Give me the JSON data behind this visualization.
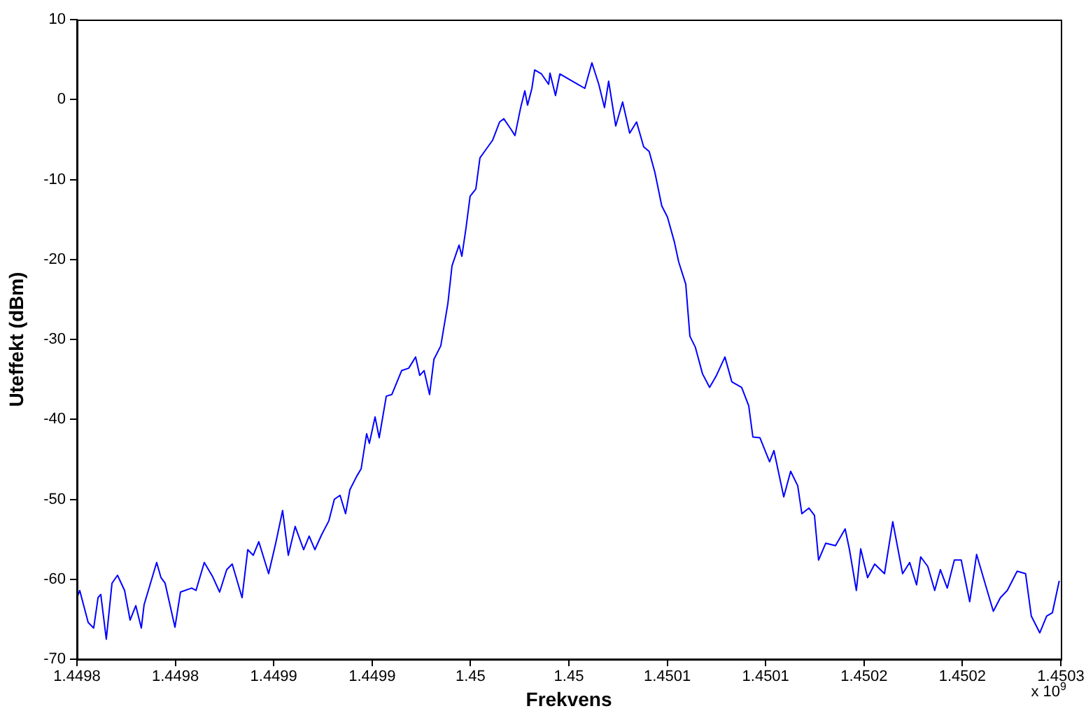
{
  "chart_data": {
    "type": "line",
    "xlabel": "Frekvens",
    "ylabel": "Uteffekt (dBm)",
    "annotations": [
      "x 10$^{9}$"
    ],
    "xlim": [
      1.4498,
      1.4503
    ],
    "xticks": [
      {
        "value": 1.4498,
        "label": "1.4498"
      },
      {
        "value": 1.44985,
        "label": "1.4498"
      },
      {
        "value": 1.4499,
        "label": "1.4499"
      },
      {
        "value": 1.44995,
        "label": "1.4499"
      },
      {
        "value": 1.45,
        "label": "1.45"
      },
      {
        "value": 1.45005,
        "label": "1.45"
      },
      {
        "value": 1.4501,
        "label": "1.4501"
      },
      {
        "value": 1.45015,
        "label": "1.4501"
      },
      {
        "value": 1.4502,
        "label": "1.4502"
      },
      {
        "value": 1.45025,
        "label": "1.4502"
      },
      {
        "value": 1.4503,
        "label": "1.4503"
      }
    ],
    "ylim": [
      -70,
      10
    ],
    "yticks": [
      -70,
      -60,
      -50,
      -40,
      -30,
      -20,
      -10,
      0,
      10
    ],
    "grid": false,
    "legend": false,
    "marker": "none",
    "line_style": "solid",
    "series": [
      {
        "color": "#0000ff",
        "x": [
          1.4498,
          1.4498014,
          1.4498057,
          1.4498085,
          1.4498107,
          1.4498121,
          1.4498149,
          1.4498178,
          1.4498206,
          1.4498242,
          1.449827,
          1.4498299,
          1.4498327,
          1.4498341,
          1.4498405,
          1.4498427,
          1.4498448,
          1.4498498,
          1.4498526,
          1.4498583,
          1.4498605,
          1.4498647,
          1.449869,
          1.4498725,
          1.4498761,
          1.4498789,
          1.4498839,
          1.4498868,
          1.4498896,
          1.4498924,
          1.4498974,
          1.449901,
          1.4499045,
          1.4499074,
          1.4499109,
          1.4499152,
          1.449918,
          1.4499209,
          1.4499244,
          1.449928,
          1.4499308,
          1.4499337,
          1.4499365,
          1.4499387,
          1.4499422,
          1.4499444,
          1.4499472,
          1.4499486,
          1.4499515,
          1.4499536,
          1.4499572,
          1.44996,
          1.449965,
          1.4499686,
          1.4499721,
          1.4499742,
          1.4499764,
          1.4499792,
          1.4499814,
          1.4499849,
          1.4499885,
          1.4499906,
          1.4499942,
          1.4499956,
          1.4499977,
          1.4499998,
          1.4500027,
          1.4500048,
          1.4500077,
          1.4500112,
          1.4500148,
          1.4500169,
          1.4500205,
          1.4500226,
          1.4500255,
          1.4500276,
          1.450029,
          1.4500312,
          1.4500326,
          1.4500361,
          1.4500397,
          1.4500404,
          1.4500432,
          1.4500454,
          1.4500503,
          1.4500546,
          1.4500581,
          1.4500617,
          1.4500652,
          1.4500681,
          1.4500702,
          1.4500738,
          1.4500773,
          1.4500809,
          1.4500844,
          1.450088,
          1.4500908,
          1.4500937,
          1.4500972,
          1.4501001,
          1.4501036,
          1.4501058,
          1.4501094,
          1.4501115,
          1.4501143,
          1.4501179,
          1.4501215,
          1.450125,
          1.4501293,
          1.4501328,
          1.4501378,
          1.4501414,
          1.4501435,
          1.4501471,
          1.450152,
          1.4501542,
          1.4501592,
          1.4501627,
          1.4501663,
          1.4501684,
          1.450172,
          1.4501748,
          1.4501769,
          1.4501805,
          1.4501855,
          1.4501904,
          1.4501926,
          1.4501961,
          1.4501983,
          1.4502018,
          1.4502054,
          1.4502104,
          1.4502146,
          1.4502196,
          1.4502232,
          1.4502267,
          1.4502288,
          1.4502324,
          1.4502359,
          1.4502388,
          1.4502423,
          1.4502459,
          1.4502494,
          1.4502537,
          1.4502572,
          1.4502622,
          1.4502657,
          1.4502693,
          1.4502728,
          1.4502778,
          1.4502821,
          1.450285,
          1.4502893,
          1.4502928,
          1.4502957,
          1.4502992
        ],
        "values": [
          -62.3,
          -61.4,
          -65.4,
          -66.1,
          -62.3,
          -61.9,
          -67.5,
          -60.5,
          -59.5,
          -61.4,
          -65.1,
          -63.3,
          -66.1,
          -63.2,
          -57.9,
          -59.8,
          -60.5,
          -66.0,
          -61.6,
          -61.1,
          -61.4,
          -57.9,
          -59.7,
          -61.6,
          -58.8,
          -58.1,
          -62.3,
          -56.3,
          -57.0,
          -55.3,
          -59.3,
          -55.5,
          -51.4,
          -57.0,
          -53.4,
          -56.3,
          -54.6,
          -56.3,
          -54.4,
          -52.7,
          -50.0,
          -49.5,
          -51.8,
          -48.8,
          -47.1,
          -46.2,
          -41.8,
          -43.0,
          -39.7,
          -42.3,
          -37.1,
          -36.9,
          -33.9,
          -33.6,
          -32.2,
          -34.5,
          -33.9,
          -36.9,
          -32.5,
          -30.8,
          -25.5,
          -20.8,
          -18.2,
          -19.6,
          -16.1,
          -12.1,
          -11.2,
          -7.3,
          -6.3,
          -5.1,
          -2.8,
          -2.4,
          -3.7,
          -4.5,
          -1.0,
          1.1,
          -0.7,
          1.4,
          3.7,
          3.2,
          1.9,
          3.3,
          0.5,
          3.2,
          2.5,
          1.9,
          1.4,
          4.6,
          1.9,
          -1.0,
          2.3,
          -3.3,
          -0.3,
          -4.2,
          -2.8,
          -5.9,
          -6.5,
          -9.1,
          -13.3,
          -14.7,
          -17.8,
          -20.3,
          -23.1,
          -29.6,
          -31.0,
          -34.3,
          -36.0,
          -34.5,
          -32.2,
          -35.3,
          -36.0,
          -38.3,
          -42.2,
          -42.3,
          -45.3,
          -43.9,
          -49.7,
          -46.5,
          -48.3,
          -51.8,
          -51.1,
          -52.0,
          -57.6,
          -55.5,
          -55.8,
          -53.7,
          -56.3,
          -61.4,
          -56.2,
          -59.8,
          -58.1,
          -59.3,
          -52.8,
          -59.3,
          -57.9,
          -60.7,
          -57.2,
          -58.4,
          -61.4,
          -58.8,
          -61.1,
          -57.6,
          -57.6,
          -62.8,
          -56.9,
          -61.1,
          -64.0,
          -62.3,
          -61.4,
          -59.0,
          -59.3,
          -64.6,
          -66.7,
          -64.6,
          -64.2,
          -60.2
        ]
      }
    ]
  }
}
